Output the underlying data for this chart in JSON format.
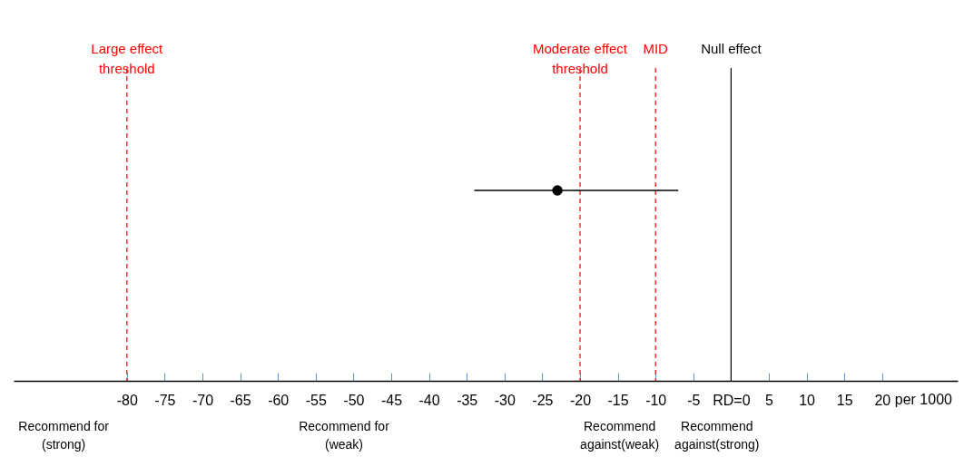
{
  "chart_data": {
    "type": "scatter",
    "orientation": "horizontal",
    "marker": "circle",
    "grid": false,
    "categories": [
      null
    ],
    "values": [
      -23
    ],
    "errors": [
      [
        -34,
        -7
      ]
    ],
    "color": "#000000",
    "xlabel": "per 1000",
    "xlim": [
      -95,
      30
    ],
    "xticks": [
      -80,
      -75,
      -70,
      -65,
      -60,
      -55,
      -50,
      -45,
      -40,
      -35,
      -30,
      -25,
      -20,
      -15,
      -10,
      -5,
      {
        "value": 0,
        "label": "RD=0"
      },
      5,
      10,
      15,
      20
    ],
    "ref_lines": [
      {
        "axis": "x",
        "value": -80,
        "label": "Large effect\nthreshold",
        "color": "#ff0000",
        "line_style": "dashed"
      },
      {
        "axis": "x",
        "value": -20,
        "label": "Moderate effect\nthreshold",
        "color": "#ff0000",
        "line_style": "dashed"
      },
      {
        "axis": "x",
        "value": -10,
        "label": "MID",
        "color": "#ff0000",
        "line_style": "dashed"
      },
      {
        "axis": "x",
        "value": 0,
        "label": "Null effect",
        "color": "#000000",
        "line_style": "solid"
      }
    ],
    "annotations": [
      "Recommend for\n(strong)",
      "Recommend for\n(weak)",
      "Recommend\nagainst(weak)",
      "Recommend\nagainst(strong)"
    ]
  }
}
